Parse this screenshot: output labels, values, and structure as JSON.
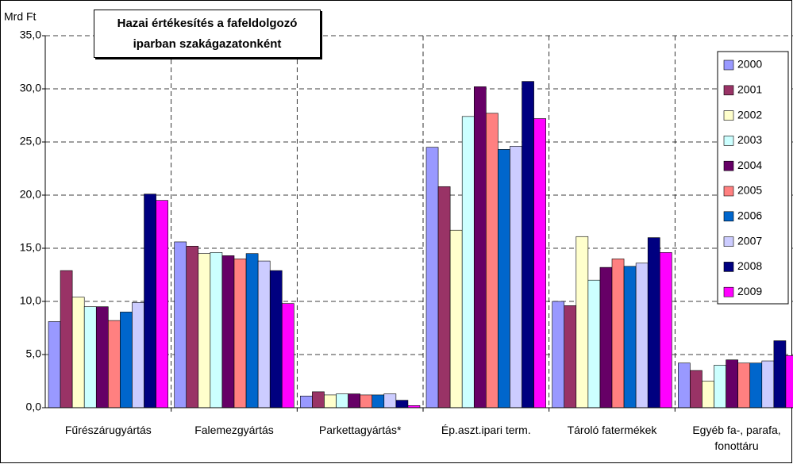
{
  "chart_data": {
    "type": "bar",
    "title": "Hazai értékesítés a fafeldolgozó iparban szakágazatonként",
    "y_label": "Mrd Ft",
    "categories": [
      "Fűrészárugyártás",
      "Falemezgyártás",
      "Parkettagyártás*",
      "Ép.aszt.ipari term.",
      "Tároló fatermékek",
      "Egyéb fa-, parafa, fonottáru"
    ],
    "series": [
      {
        "name": "2000",
        "color": "#9999ff",
        "values": [
          8.1,
          15.6,
          1.1,
          24.5,
          10.0,
          4.2
        ]
      },
      {
        "name": "2001",
        "color": "#993366",
        "values": [
          12.9,
          15.2,
          1.5,
          20.8,
          9.6,
          3.5
        ]
      },
      {
        "name": "2002",
        "color": "#ffffcc",
        "values": [
          10.4,
          14.5,
          1.2,
          16.7,
          16.1,
          2.5
        ]
      },
      {
        "name": "2003",
        "color": "#ccffff",
        "values": [
          9.5,
          14.6,
          1.3,
          27.4,
          12.0,
          4.0
        ]
      },
      {
        "name": "2004",
        "color": "#660066",
        "values": [
          9.5,
          14.3,
          1.3,
          30.2,
          13.2,
          4.5
        ]
      },
      {
        "name": "2005",
        "color": "#ff8080",
        "values": [
          8.2,
          14.0,
          1.2,
          27.7,
          14.0,
          4.2
        ]
      },
      {
        "name": "2006",
        "color": "#0066cc",
        "values": [
          9.0,
          14.5,
          1.2,
          24.3,
          13.3,
          4.2
        ]
      },
      {
        "name": "2007",
        "color": "#ccccff",
        "values": [
          9.9,
          13.8,
          1.3,
          24.6,
          13.6,
          4.4
        ]
      },
      {
        "name": "2008",
        "color": "#000080",
        "values": [
          20.1,
          12.9,
          0.7,
          30.7,
          16.0,
          6.3
        ]
      },
      {
        "name": "2009",
        "color": "#ff00ff",
        "values": [
          19.5,
          9.8,
          0.2,
          27.2,
          14.6,
          4.9
        ]
      }
    ],
    "ylim": [
      0,
      35
    ],
    "yticks": [
      {
        "value": 0,
        "label": "0,0"
      },
      {
        "value": 5,
        "label": "5,0"
      },
      {
        "value": 10,
        "label": "10,0"
      },
      {
        "value": 15,
        "label": "15,0"
      },
      {
        "value": 20,
        "label": "20,0"
      },
      {
        "value": 25,
        "label": "25,0"
      },
      {
        "value": 30,
        "label": "30,0"
      },
      {
        "value": 35,
        "label": "35,0"
      }
    ],
    "grid": true
  }
}
